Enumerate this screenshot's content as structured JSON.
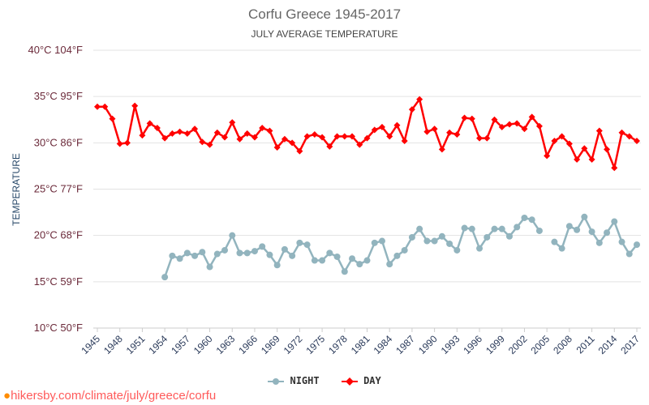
{
  "chart_data": {
    "type": "line",
    "title": "Corfu Greece 1945-2017",
    "subtitle": "JULY AVERAGE TEMPERATURE",
    "ylabel": "TEMPERATURE",
    "xlabel": "",
    "ylim": [
      10,
      40
    ],
    "y_ticks": [
      "10°C 50°F",
      "15°C 59°F",
      "20°C 68°F",
      "25°C 77°F",
      "30°C 86°F",
      "35°C 95°F",
      "40°C 104°F"
    ],
    "y_tick_values": [
      10,
      15,
      20,
      25,
      30,
      35,
      40
    ],
    "x_tick_labels": [
      "1945",
      "1948",
      "1951",
      "1954",
      "1957",
      "1960",
      "1963",
      "1966",
      "1969",
      "1972",
      "1975",
      "1978",
      "1981",
      "1984",
      "1987",
      "1990",
      "1993",
      "1996",
      "1999",
      "2002",
      "2005",
      "2008",
      "2011",
      "2014",
      "2017"
    ],
    "x": [
      1945,
      1946,
      1947,
      1948,
      1949,
      1950,
      1951,
      1952,
      1953,
      1954,
      1955,
      1956,
      1957,
      1958,
      1959,
      1960,
      1961,
      1962,
      1963,
      1964,
      1965,
      1966,
      1967,
      1968,
      1969,
      1970,
      1971,
      1972,
      1973,
      1974,
      1975,
      1976,
      1977,
      1978,
      1979,
      1980,
      1981,
      1982,
      1983,
      1984,
      1985,
      1986,
      1987,
      1988,
      1989,
      1990,
      1991,
      1992,
      1993,
      1994,
      1995,
      1996,
      1997,
      1998,
      1999,
      2000,
      2001,
      2002,
      2003,
      2004,
      2005,
      2006,
      2007,
      2008,
      2009,
      2010,
      2011,
      2012,
      2013,
      2014,
      2015,
      2016,
      2017
    ],
    "grid": true,
    "legend_placement": "bottom",
    "series": [
      {
        "name": "NIGHT",
        "color": "#92b4be",
        "marker": "circle",
        "values": [
          null,
          null,
          null,
          null,
          null,
          null,
          null,
          null,
          null,
          15.5,
          17.8,
          17.5,
          18.1,
          17.8,
          18.2,
          16.6,
          18.0,
          18.4,
          20.0,
          18.1,
          18.1,
          18.3,
          18.8,
          17.9,
          16.8,
          18.5,
          17.8,
          19.2,
          19.0,
          17.3,
          17.3,
          18.1,
          17.7,
          16.1,
          17.5,
          16.9,
          17.3,
          19.2,
          19.4,
          16.9,
          17.8,
          18.4,
          19.8,
          20.7,
          19.4,
          19.4,
          19.9,
          19.1,
          18.4,
          20.8,
          20.7,
          18.6,
          19.8,
          20.7,
          20.7,
          19.9,
          20.9,
          21.9,
          21.7,
          20.5,
          null,
          19.3,
          18.6,
          21.0,
          20.6,
          22.0,
          20.4,
          19.2,
          20.3,
          21.5,
          19.3,
          18.0,
          19.0
        ]
      },
      {
        "name": "DAY",
        "color": "#ff0000",
        "marker": "diamond",
        "values": [
          33.9,
          33.9,
          32.6,
          29.9,
          30.0,
          34.0,
          30.8,
          32.1,
          31.6,
          30.5,
          31.0,
          31.2,
          31.0,
          31.5,
          30.1,
          29.8,
          31.1,
          30.6,
          32.2,
          30.4,
          31.0,
          30.6,
          31.6,
          31.3,
          29.5,
          30.4,
          30.0,
          29.1,
          30.7,
          30.9,
          30.6,
          29.6,
          30.7,
          30.7,
          30.7,
          29.8,
          30.5,
          31.4,
          31.7,
          30.7,
          31.9,
          30.2,
          33.6,
          34.7,
          31.2,
          31.5,
          29.3,
          31.1,
          30.9,
          32.7,
          32.6,
          30.5,
          30.5,
          32.5,
          31.7,
          32.0,
          32.1,
          31.5,
          32.8,
          31.8,
          28.6,
          30.2,
          30.7,
          29.9,
          28.2,
          29.4,
          28.2,
          31.3,
          29.3,
          27.3,
          31.1,
          30.7,
          30.2
        ]
      }
    ]
  },
  "footer": {
    "text": "hikersby.com/climate/july/greece/corfu",
    "icon": "map-pin-icon"
  }
}
